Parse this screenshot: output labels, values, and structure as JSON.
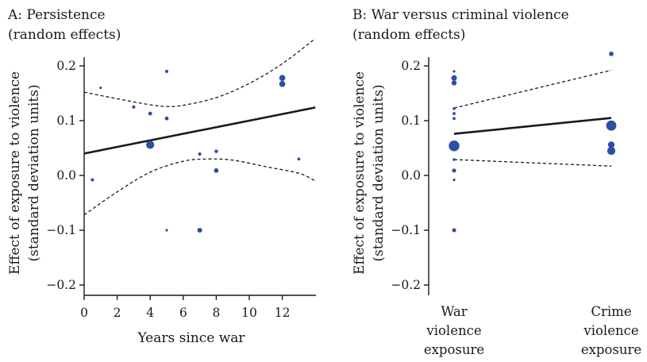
{
  "chart_data": [
    {
      "type": "scatter",
      "title": "A: Persistence",
      "subtitle": "(random effects)",
      "xlabel": "Years since war",
      "ylabel": "Effect of exposure to violence",
      "ylabel2": "(standard deviation units)",
      "xlim": [
        0,
        14
      ],
      "ylim": [
        -0.22,
        0.22
      ],
      "xticks": [
        0,
        2,
        4,
        6,
        8,
        10,
        12
      ],
      "yticks": [
        0.2,
        0.1,
        0.0,
        -0.1,
        -0.2
      ],
      "ytick_labels": [
        "0.2",
        "0.1",
        "0.0",
        "-0.1",
        "-0.2"
      ],
      "points": [
        {
          "x": 0.5,
          "y": -0.008,
          "size": 1.3
        },
        {
          "x": 1,
          "y": 0.16,
          "size": 1
        },
        {
          "x": 3,
          "y": 0.125,
          "size": 1.3
        },
        {
          "x": 4,
          "y": 0.113,
          "size": 1.5
        },
        {
          "x": 4,
          "y": 0.056,
          "size": 3.2
        },
        {
          "x": 5,
          "y": 0.19,
          "size": 1.3
        },
        {
          "x": 5,
          "y": 0.104,
          "size": 1.5
        },
        {
          "x": 5,
          "y": -0.1,
          "size": 1
        },
        {
          "x": 7,
          "y": 0.039,
          "size": 1.3
        },
        {
          "x": 7,
          "y": -0.1,
          "size": 1.9
        },
        {
          "x": 8,
          "y": 0.044,
          "size": 1.4
        },
        {
          "x": 8,
          "y": 0.009,
          "size": 1.8
        },
        {
          "x": 12,
          "y": 0.178,
          "size": 2.4
        },
        {
          "x": 12,
          "y": 0.167,
          "size": 2.4
        },
        {
          "x": 13,
          "y": 0.03,
          "size": 1.2
        }
      ],
      "fit_line": [
        [
          0,
          0.04
        ],
        [
          14,
          0.124
        ]
      ],
      "ci_upper": [
        [
          0,
          0.152
        ],
        [
          2,
          0.14
        ],
        [
          4,
          0.129
        ],
        [
          5,
          0.126
        ],
        [
          6,
          0.128
        ],
        [
          8,
          0.142
        ],
        [
          10,
          0.168
        ],
        [
          12,
          0.204
        ],
        [
          14,
          0.25
        ]
      ],
      "ci_lower": [
        [
          0,
          -0.072
        ],
        [
          2,
          -0.03
        ],
        [
          4,
          0.006
        ],
        [
          6,
          0.026
        ],
        [
          7.5,
          0.03
        ],
        [
          9,
          0.028
        ],
        [
          11,
          0.016
        ],
        [
          13,
          0.004
        ],
        [
          14,
          -0.01
        ]
      ]
    },
    {
      "type": "scatter",
      "title": "B: War versus criminal violence",
      "subtitle": "(random effects)",
      "ylabel": "Effect of exposure to violence",
      "ylabel2": "(standard deviation units)",
      "ylim": [
        -0.22,
        0.22
      ],
      "yticks": [
        0.2,
        0.1,
        0.0,
        -0.1,
        -0.2
      ],
      "ytick_labels": [
        "0.2",
        "0.1",
        "0.0",
        "-0.1",
        "-0.2"
      ],
      "categories": [
        {
          "lines": [
            "War",
            "violence",
            "exposure"
          ]
        },
        {
          "lines": [
            "Crime",
            "violence",
            "exposure"
          ]
        }
      ],
      "points": [
        {
          "c": 0,
          "y": 0.19,
          "size": 1
        },
        {
          "c": 0,
          "y": 0.178,
          "size": 2.2
        },
        {
          "c": 0,
          "y": 0.169,
          "size": 2
        },
        {
          "c": 0,
          "y": 0.122,
          "size": 1.1
        },
        {
          "c": 0,
          "y": 0.113,
          "size": 1.2
        },
        {
          "c": 0,
          "y": 0.104,
          "size": 1.2
        },
        {
          "c": 0,
          "y": 0.054,
          "size": 4.2
        },
        {
          "c": 0,
          "y": 0.029,
          "size": 1.1
        },
        {
          "c": 0,
          "y": 0.009,
          "size": 1.6
        },
        {
          "c": 0,
          "y": -0.008,
          "size": 1
        },
        {
          "c": 0,
          "y": -0.1,
          "size": 1.6
        },
        {
          "c": 1,
          "y": 0.222,
          "size": 1.8
        },
        {
          "c": 1,
          "y": 0.091,
          "size": 4
        },
        {
          "c": 1,
          "y": 0.056,
          "size": 2.6
        },
        {
          "c": 1,
          "y": 0.045,
          "size": 3.2
        }
      ],
      "fit_line": [
        [
          0,
          0.076
        ],
        [
          1,
          0.105
        ]
      ],
      "ci_upper": [
        [
          0,
          0.123
        ],
        [
          1,
          0.192
        ]
      ],
      "ci_lower": [
        [
          0,
          0.029
        ],
        [
          1,
          0.017
        ]
      ]
    }
  ]
}
